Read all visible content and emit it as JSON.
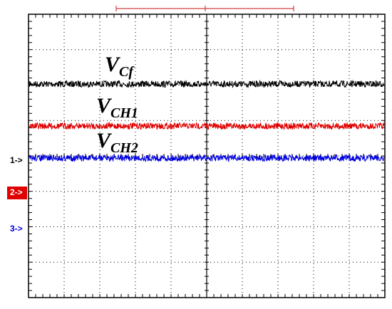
{
  "traces": [
    {
      "label": {
        "main": "V",
        "sub": "Cf"
      },
      "color": "#000000"
    },
    {
      "label": {
        "main": "V",
        "sub": "CH1"
      },
      "color": "#e00000"
    },
    {
      "label": {
        "main": "V",
        "sub": "CH2"
      },
      "color": "#0000e0"
    }
  ],
  "markers": [
    "1->",
    "2->",
    "3->"
  ]
}
